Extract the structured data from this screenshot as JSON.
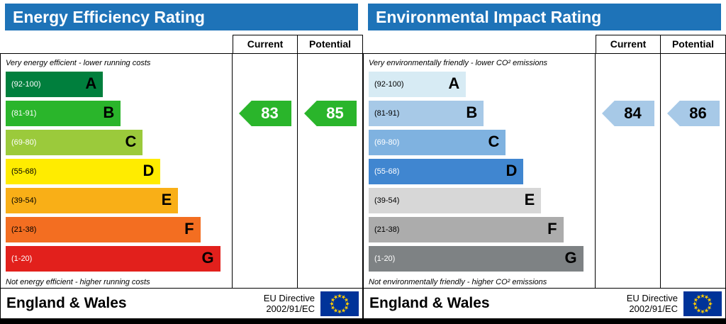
{
  "theme": {
    "header_bg": "#1e73b8",
    "header_text": "#ffffff",
    "flag_bg": "#003399",
    "flag_star": "#ffcc00"
  },
  "panels": [
    {
      "title": "Energy Efficiency Rating",
      "columns": {
        "current": "Current",
        "potential": "Potential"
      },
      "top_note": "Very energy efficient - lower running costs",
      "bottom_note": "Not energy efficient - higher running costs",
      "bands": [
        {
          "range": "(92-100)",
          "letter": "A",
          "color": "#007f3d",
          "width_pct": 44,
          "range_color": "#ffffff",
          "letter_color": "#000000"
        },
        {
          "range": "(81-91)",
          "letter": "B",
          "color": "#2ab52b",
          "width_pct": 52,
          "range_color": "#ffffff",
          "letter_color": "#000000"
        },
        {
          "range": "(69-80)",
          "letter": "C",
          "color": "#9bca3b",
          "width_pct": 62,
          "range_color": "#ffffff",
          "letter_color": "#000000"
        },
        {
          "range": "(55-68)",
          "letter": "D",
          "color": "#ffec00",
          "width_pct": 70,
          "range_color": "#000000",
          "letter_color": "#000000"
        },
        {
          "range": "(39-54)",
          "letter": "E",
          "color": "#f9af17",
          "width_pct": 78,
          "range_color": "#000000",
          "letter_color": "#000000"
        },
        {
          "range": "(21-38)",
          "letter": "F",
          "color": "#f36e21",
          "width_pct": 88,
          "range_color": "#000000",
          "letter_color": "#000000"
        },
        {
          "range": "(1-20)",
          "letter": "G",
          "color": "#e2201c",
          "width_pct": 97,
          "range_color": "#ffffff",
          "letter_color": "#000000"
        }
      ],
      "current": {
        "value": "83",
        "band_index": 1,
        "color": "#2ab52b",
        "text_color": "#ffffff"
      },
      "potential": {
        "value": "85",
        "band_index": 1,
        "color": "#2ab52b",
        "text_color": "#ffffff"
      },
      "footer": {
        "region": "England & Wales",
        "directive_line1": "EU Directive",
        "directive_line2": "2002/91/EC"
      }
    },
    {
      "title": "Environmental Impact Rating",
      "columns": {
        "current": "Current",
        "potential": "Potential"
      },
      "top_note": "Very environmentally friendly - lower CO² emissions",
      "bottom_note": "Not environmentally friendly - higher CO² emissions",
      "bands": [
        {
          "range": "(92-100)",
          "letter": "A",
          "color": "#d7ebf4",
          "width_pct": 44,
          "range_color": "#000000",
          "letter_color": "#000000"
        },
        {
          "range": "(81-91)",
          "letter": "B",
          "color": "#a7c9e7",
          "width_pct": 52,
          "range_color": "#000000",
          "letter_color": "#000000"
        },
        {
          "range": "(69-80)",
          "letter": "C",
          "color": "#7fb2e0",
          "width_pct": 62,
          "range_color": "#ffffff",
          "letter_color": "#000000"
        },
        {
          "range": "(55-68)",
          "letter": "D",
          "color": "#4086d0",
          "width_pct": 70,
          "range_color": "#ffffff",
          "letter_color": "#000000"
        },
        {
          "range": "(39-54)",
          "letter": "E",
          "color": "#d7d7d7",
          "width_pct": 78,
          "range_color": "#000000",
          "letter_color": "#000000"
        },
        {
          "range": "(21-38)",
          "letter": "F",
          "color": "#acacac",
          "width_pct": 88,
          "range_color": "#000000",
          "letter_color": "#000000"
        },
        {
          "range": "(1-20)",
          "letter": "G",
          "color": "#7e8284",
          "width_pct": 97,
          "range_color": "#ffffff",
          "letter_color": "#000000"
        }
      ],
      "current": {
        "value": "84",
        "band_index": 1,
        "color": "#a7c9e7",
        "text_color": "#000000"
      },
      "potential": {
        "value": "86",
        "band_index": 1,
        "color": "#a7c9e7",
        "text_color": "#000000"
      },
      "footer": {
        "region": "England & Wales",
        "directive_line1": "EU Directive",
        "directive_line2": "2002/91/EC"
      }
    }
  ],
  "chart_data": [
    {
      "type": "bar",
      "title": "Energy Efficiency Rating",
      "categories": [
        "A (92-100)",
        "B (81-91)",
        "C (69-80)",
        "D (55-68)",
        "E (39-54)",
        "F (21-38)",
        "G (1-20)"
      ],
      "current": {
        "value": 83,
        "band": "B"
      },
      "potential": {
        "value": 85,
        "band": "B"
      },
      "notes": [
        "Very energy efficient - lower running costs",
        "Not energy efficient - higher running costs"
      ],
      "footer": "England & Wales, EU Directive 2002/91/EC"
    },
    {
      "type": "bar",
      "title": "Environmental Impact Rating",
      "categories": [
        "A (92-100)",
        "B (81-91)",
        "C (69-80)",
        "D (55-68)",
        "E (39-54)",
        "F (21-38)",
        "G (1-20)"
      ],
      "current": {
        "value": 84,
        "band": "B"
      },
      "potential": {
        "value": 86,
        "band": "B"
      },
      "notes": [
        "Very environmentally friendly - lower CO² emissions",
        "Not environmentally friendly - higher CO² emissions"
      ],
      "footer": "England & Wales, EU Directive 2002/91/EC"
    }
  ]
}
